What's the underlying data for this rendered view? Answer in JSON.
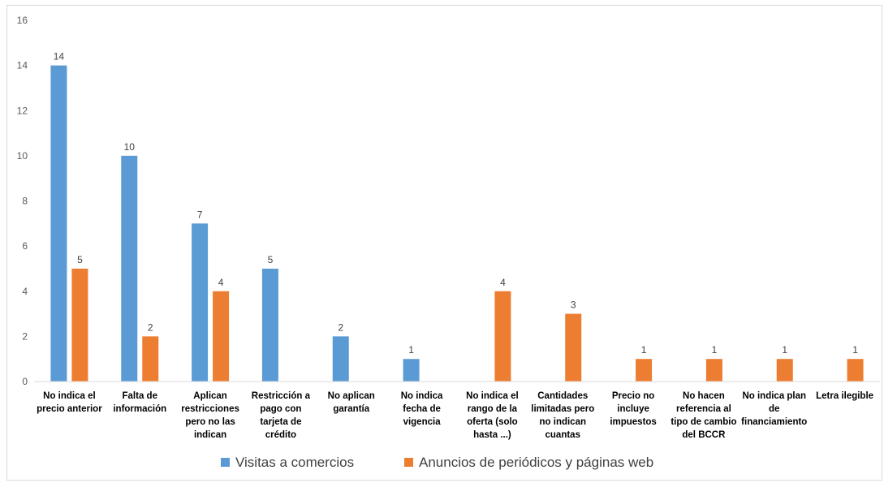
{
  "chart_data": {
    "type": "bar",
    "title": "",
    "xlabel": "",
    "ylabel": "",
    "ylim": [
      0,
      16
    ],
    "yticks": [
      0,
      2,
      4,
      6,
      8,
      10,
      12,
      14,
      16
    ],
    "grid": false,
    "legend_position": "bottom",
    "categories": [
      [
        "No indica el",
        "precio anterior"
      ],
      [
        "Falta de",
        "información"
      ],
      [
        "Aplican",
        "restricciones",
        "pero no las",
        "indican"
      ],
      [
        "Restricción a",
        "pago con",
        "tarjeta de",
        "crédito"
      ],
      [
        "No aplican",
        "garantía"
      ],
      [
        "No indica",
        "fecha de",
        "vigencia"
      ],
      [
        "No indica el",
        "rango de la",
        "oferta (solo",
        "hasta ...)"
      ],
      [
        "Cantidades",
        "limitadas pero",
        "no indican",
        "cuantas"
      ],
      [
        "Precio no",
        "incluye",
        "impuestos"
      ],
      [
        "No hacen",
        "referencia al",
        "tipo de cambio",
        "del BCCR"
      ],
      [
        "No indica plan",
        "de",
        "financiamiento"
      ],
      [
        "Letra ilegible"
      ]
    ],
    "series": [
      {
        "name": "Visitas a comercios",
        "color": "#5B9BD5",
        "values": [
          14,
          10,
          7,
          5,
          2,
          1,
          null,
          null,
          null,
          null,
          null,
          null
        ]
      },
      {
        "name": "Anuncios de periódicos y páginas web",
        "color": "#ED7D31",
        "values": [
          5,
          2,
          4,
          null,
          null,
          null,
          4,
          3,
          1,
          1,
          1,
          1
        ]
      }
    ]
  }
}
